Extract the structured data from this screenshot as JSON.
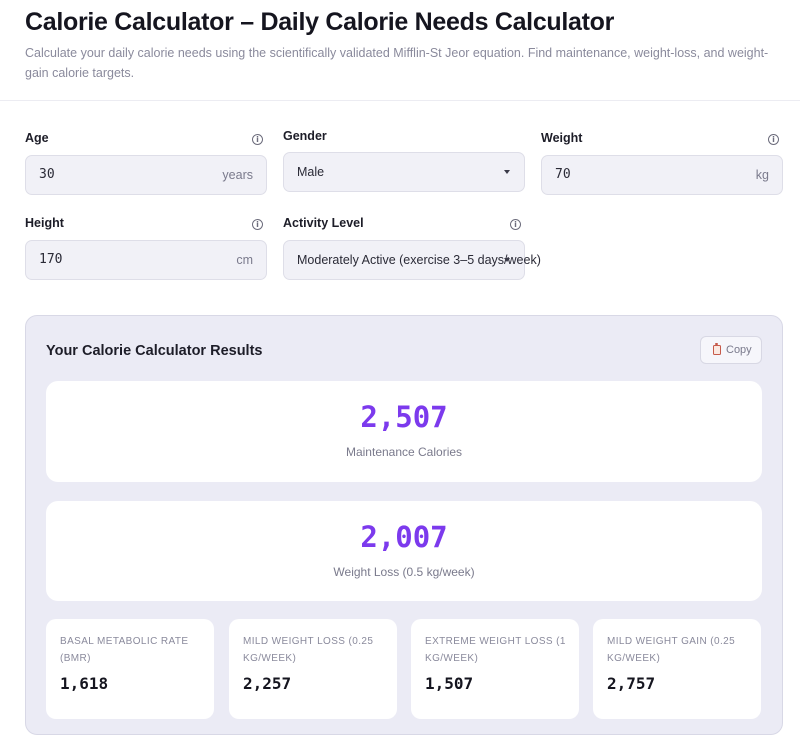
{
  "header": {
    "title": "Calorie Calculator – Daily Calorie Needs Calculator",
    "subtitle": "Calculate your daily calorie needs using the scientifically validated Mifflin-St Jeor equation. Find maintenance, weight-loss, and weight-gain calorie targets."
  },
  "form": {
    "age": {
      "label": "Age",
      "value": "30",
      "unit": "years"
    },
    "gender": {
      "label": "Gender",
      "value": "Male"
    },
    "weight": {
      "label": "Weight",
      "value": "70",
      "unit": "kg"
    },
    "height": {
      "label": "Height",
      "value": "170",
      "unit": "cm"
    },
    "activity": {
      "label": "Activity Level",
      "value": "Moderately Active (exercise 3–5 days/week)"
    },
    "info_glyph": "i"
  },
  "results": {
    "title": "Your Calorie Calculator Results",
    "copy_label": "Copy",
    "maintenance": {
      "value": "2,507",
      "caption": "Maintenance Calories"
    },
    "weight_loss": {
      "value": "2,007",
      "caption": "Weight Loss (0.5 kg/week)"
    },
    "stats": [
      {
        "label": "Basal Metabolic Rate (BMR)",
        "value": "1,618"
      },
      {
        "label": "Mild Weight Loss (0.25 kg/week)",
        "value": "2,257"
      },
      {
        "label": "Extreme Weight Loss (1 kg/week)",
        "value": "1,507"
      },
      {
        "label": "Mild Weight Gain (0.25 kg/week)",
        "value": "2,757"
      }
    ]
  },
  "colors": {
    "accent": "#7c3aed",
    "panel_bg": "#ebebf5",
    "input_bg": "#f1f1f7"
  },
  "icons": [
    "info-icon",
    "chevron-down-icon",
    "clipboard-icon"
  ]
}
